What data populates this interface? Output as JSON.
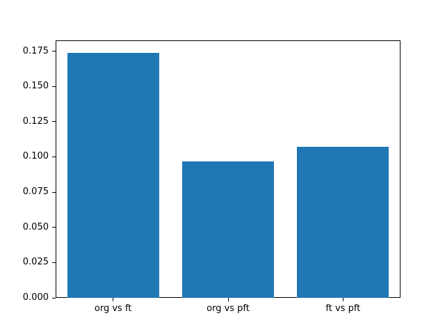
{
  "figure": {
    "background": "#ffffff"
  },
  "chart_data": {
    "type": "bar",
    "title": "",
    "xlabel": "",
    "ylabel": "",
    "categories": [
      "org vs ft",
      "org vs pft",
      "ft vs pft"
    ],
    "values": [
      0.174,
      0.097,
      0.107
    ],
    "bar_color": "#1f77b4",
    "ylim": [
      0,
      0.1827
    ],
    "yticks": [
      0.0,
      0.025,
      0.05,
      0.075,
      0.1,
      0.125,
      0.15,
      0.175
    ],
    "ytick_labels": [
      "0.000",
      "0.025",
      "0.050",
      "0.075",
      "0.100",
      "0.125",
      "0.150",
      "0.175"
    ],
    "grid": false,
    "legend": null
  }
}
